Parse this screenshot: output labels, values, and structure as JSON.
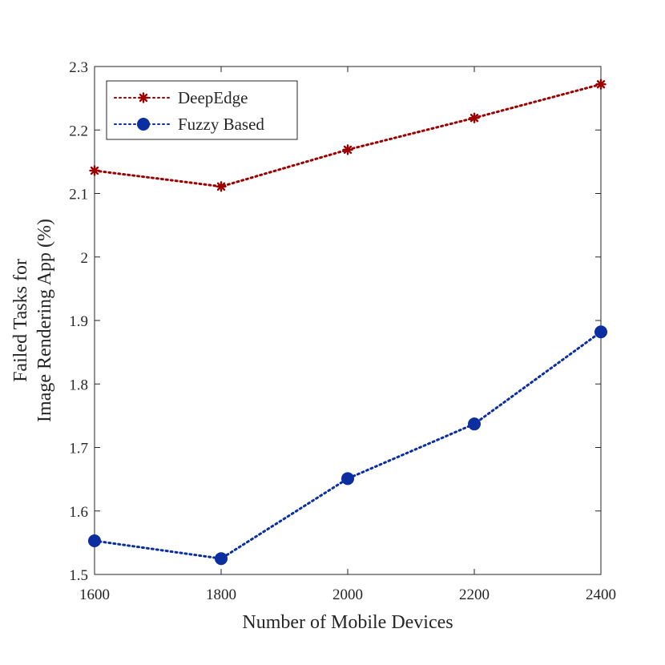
{
  "chart_data": {
    "type": "line",
    "x": [
      1600,
      1800,
      2000,
      2200,
      2400
    ],
    "xlabel": "Number of Mobile Devices",
    "ylabel_lines": [
      "Failed Tasks for",
      "Image Rendering App (%)"
    ],
    "xlim": [
      1600,
      2400
    ],
    "ylim": [
      1.5,
      2.3
    ],
    "xticks": [
      "1600",
      "1800",
      "2000",
      "2200",
      "2400"
    ],
    "yticks": [
      "1.5",
      "1.6",
      "1.7",
      "1.8",
      "1.9",
      "2",
      "2.1",
      "2.2",
      "2.3"
    ],
    "legend_position": "top-left",
    "grid": false,
    "series": [
      {
        "name": "DeepEdge",
        "values": [
          2.136,
          2.111,
          2.169,
          2.219,
          2.272
        ],
        "color": "#9b0000",
        "marker": "asterisk",
        "line_style": "dotted"
      },
      {
        "name": "Fuzzy Based",
        "values": [
          1.553,
          1.525,
          1.651,
          1.737,
          1.882
        ],
        "color": "#0b2ea0",
        "marker": "circle",
        "line_style": "dotted"
      }
    ]
  }
}
